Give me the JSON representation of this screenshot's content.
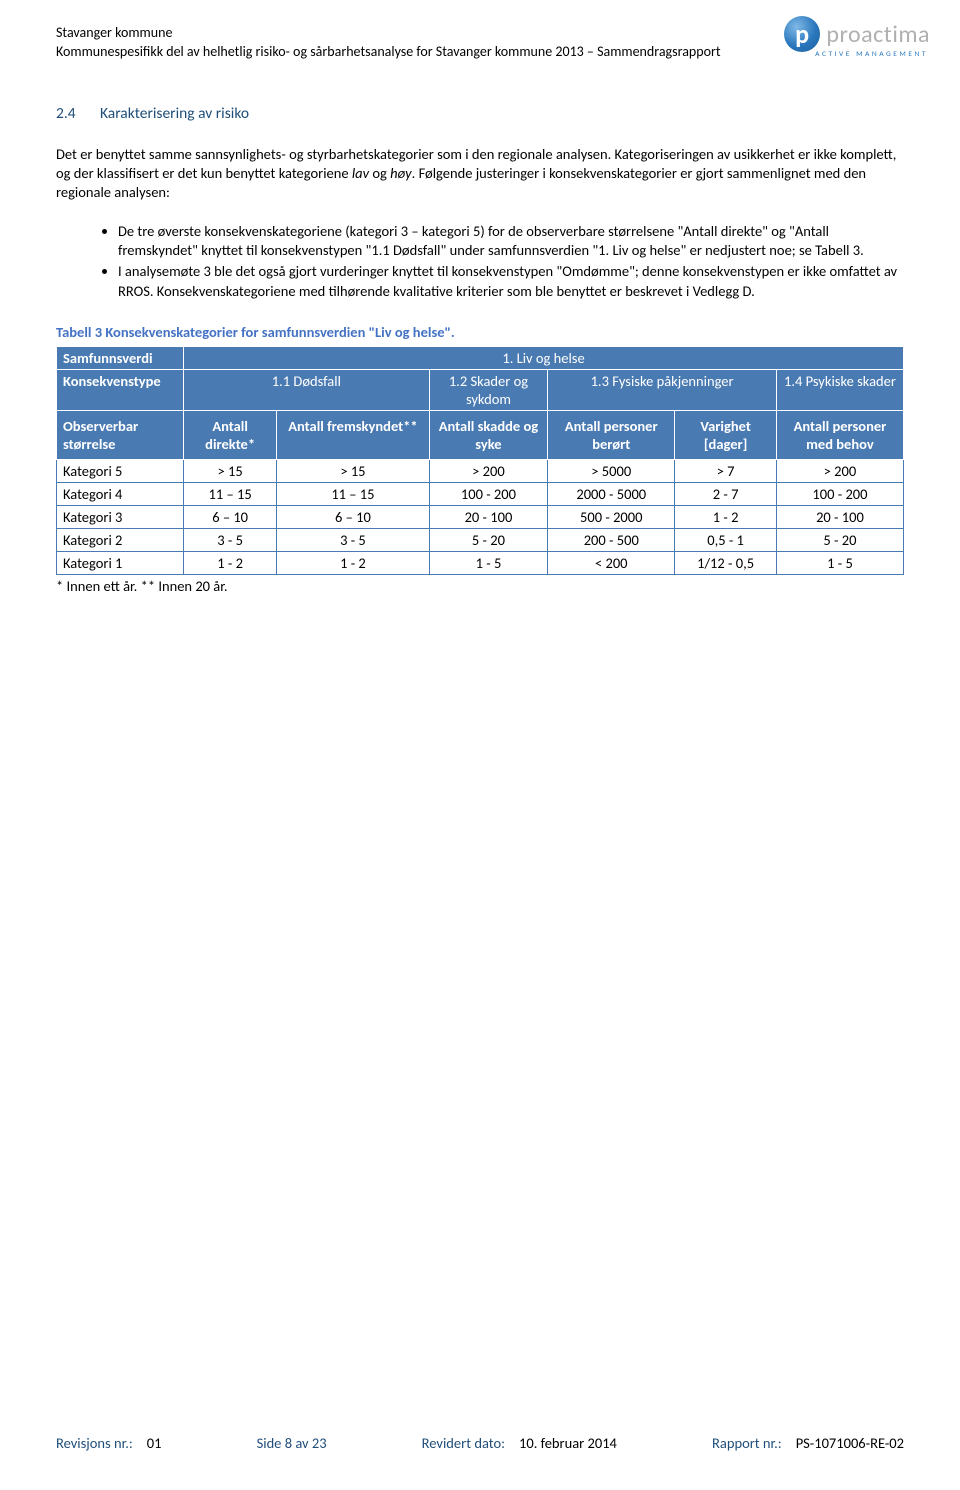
{
  "header": {
    "line1": "Stavanger kommune",
    "line2": "Kommunespesifikk del av helhetlig risiko- og sårbarhetsanalyse for Stavanger kommune 2013 – Sammendragsrapport"
  },
  "logo": {
    "letter": "p",
    "brand": "proactima",
    "sub": "ACTIVE MANAGEMENT"
  },
  "section": {
    "num": "2.4",
    "title": "Karakterisering av risiko"
  },
  "para1a": "Det er benyttet samme sannsynlighets- og styrbarhetskategorier som i den regionale analysen. Kategoriseringen av usikkerhet er ikke komplett, og der klassifisert er det kun benyttet kategoriene ",
  "para1_lav": "lav",
  "para1_og": " og ",
  "para1_hoy": "høy",
  "para1b": ". Følgende justeringer i konsekvenskategorier er gjort sammenlignet med den regionale analysen:",
  "bullet1": "De tre øverste konsekvenskategoriene (kategori 3 – kategori 5) for de observerbare størrelsene \"Antall direkte\" og \"Antall fremskyndet\" knyttet til konsekvenstypen \"1.1 Dødsfall\" under samfunnsverdien \"1. Liv og helse\" er nedjustert noe; se Tabell 3.",
  "bullet2": "I analysemøte 3 ble det også gjort vurderinger knyttet til konsekvenstypen \"Omdømme\"; denne konsekvenstypen er ikke omfattet av RROS. Konsekvenskategoriene med tilhørende kvalitative kriterier som ble benyttet er beskrevet i Vedlegg D.",
  "table_caption": "Tabell 3 Konsekvenskategorier for samfunnsverdien \"Liv og helse\".",
  "table": {
    "header_bg": "#4a7ab2",
    "header_fg": "#ffffff",
    "border_color": "#4a7ab2",
    "row1": {
      "c0": "Samfunnsverdi",
      "c1": "1. Liv og helse"
    },
    "row2": {
      "c0": "Konsekvenstype",
      "c1": "1.1 Dødsfall",
      "c2": "1.2 Skader og sykdom",
      "c3": "1.3 Fysiske påkjenninger",
      "c4": "1.4 Psykiske skader"
    },
    "row3": {
      "c0": "Observerbar størrelse",
      "c1": "Antall direkte*",
      "c2": "Antall fremskyndet**",
      "c3": "Antall skadde og syke",
      "c4": "Antall personer berørt",
      "c5": "Varighet [dager]",
      "c6": "Antall personer med behov"
    },
    "rows": [
      {
        "label": "Kategori 5",
        "v": [
          "> 15",
          "> 15",
          "> 200",
          "> 5000",
          "> 7",
          "> 200"
        ]
      },
      {
        "label": "Kategori 4",
        "v": [
          "11 – 15",
          "11 – 15",
          "100 - 200",
          "2000 - 5000",
          "2 - 7",
          "100 - 200"
        ]
      },
      {
        "label": "Kategori 3",
        "v": [
          "6 – 10",
          "6 – 10",
          "20 - 100",
          "500 - 2000",
          "1 - 2",
          "20 - 100"
        ]
      },
      {
        "label": "Kategori 2",
        "v": [
          "3 - 5",
          "3 - 5",
          "5 - 20",
          "200 - 500",
          "0,5 - 1",
          "5 - 20"
        ]
      },
      {
        "label": "Kategori 1",
        "v": [
          "1 - 2",
          "1 - 2",
          "1 - 5",
          "< 200",
          "1/12 - 0,5",
          "1 - 5"
        ]
      }
    ],
    "footnote": "* Innen ett år. ** Innen 20 år.",
    "col_widths_pct": [
      15,
      11,
      18,
      14,
      15,
      12,
      15
    ]
  },
  "footer": {
    "rev_lbl": "Revisjons nr.:",
    "rev_val": "01",
    "page_lbl": "Side",
    "page_val": "8 av 23",
    "date_lbl": "Revidert dato:",
    "date_val": "10. februar 2014",
    "rep_lbl": "Rapport nr.:",
    "rep_val": "PS-1071006-RE-02"
  }
}
